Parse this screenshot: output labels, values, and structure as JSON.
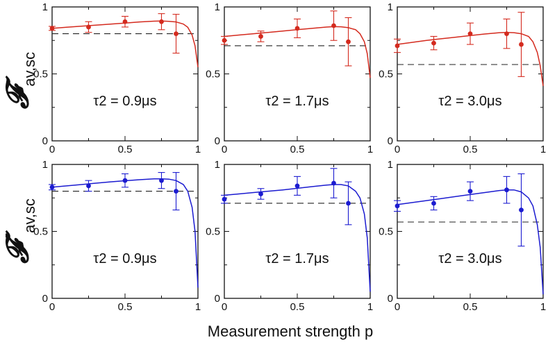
{
  "figure": {
    "xlabel": "Measurement strength p",
    "row_ylabels": [
      {
        "symbol": "𝓕",
        "prime": "",
        "subscript": "av,sc"
      },
      {
        "symbol": "𝓕",
        "prime": "′",
        "subscript": "av,sc"
      }
    ]
  },
  "chart_data": [
    {
      "type": "scatter",
      "row": 0,
      "col": 0,
      "series_color": "#d42a1e",
      "annotation": "τ2 = 0.9μs",
      "xlim": [
        0,
        1
      ],
      "ylim": [
        0,
        1
      ],
      "xticks": [
        "0",
        "0.5",
        "1"
      ],
      "yticks": [
        "0",
        "0.5",
        "1"
      ],
      "points": [
        {
          "x": 0,
          "y": 0.84,
          "err": 0.015
        },
        {
          "x": 0.25,
          "y": 0.85,
          "err": 0.04
        },
        {
          "x": 0.5,
          "y": 0.89,
          "err": 0.04
        },
        {
          "x": 0.75,
          "y": 0.89,
          "err": 0.06
        },
        {
          "x": 0.85,
          "y": 0.8,
          "err": 0.145
        }
      ],
      "fit_curve": {
        "x": [
          0,
          0.1,
          0.2,
          0.3,
          0.4,
          0.5,
          0.6,
          0.7,
          0.75,
          0.8,
          0.85,
          0.9,
          0.93,
          0.96,
          0.98,
          1.0
        ],
        "y": [
          0.84,
          0.848,
          0.856,
          0.864,
          0.872,
          0.88,
          0.888,
          0.894,
          0.895,
          0.893,
          0.888,
          0.872,
          0.848,
          0.79,
          0.71,
          0.55
        ]
      },
      "classical_bound": 0.8
    },
    {
      "type": "scatter",
      "row": 0,
      "col": 1,
      "series_color": "#d42a1e",
      "annotation": "τ2 = 1.7μs",
      "xlim": [
        0,
        1
      ],
      "ylim": [
        0,
        1
      ],
      "xticks": [
        "0",
        "0.5",
        "1"
      ],
      "yticks": [
        "0",
        "0.5",
        "1"
      ],
      "points": [
        {
          "x": 0,
          "y": 0.75,
          "err": 0.03
        },
        {
          "x": 0.25,
          "y": 0.78,
          "err": 0.04
        },
        {
          "x": 0.5,
          "y": 0.84,
          "err": 0.07
        },
        {
          "x": 0.75,
          "y": 0.86,
          "err": 0.11
        },
        {
          "x": 0.85,
          "y": 0.74,
          "err": 0.18
        }
      ],
      "fit_curve": {
        "x": [
          0,
          0.1,
          0.2,
          0.3,
          0.4,
          0.5,
          0.6,
          0.7,
          0.75,
          0.8,
          0.85,
          0.9,
          0.93,
          0.96,
          0.98,
          1.0
        ],
        "y": [
          0.78,
          0.79,
          0.8,
          0.81,
          0.82,
          0.83,
          0.84,
          0.85,
          0.853,
          0.852,
          0.845,
          0.83,
          0.8,
          0.74,
          0.65,
          0.47
        ]
      },
      "classical_bound": 0.71
    },
    {
      "type": "scatter",
      "row": 0,
      "col": 2,
      "series_color": "#d42a1e",
      "annotation": "τ2 = 3.0μs",
      "xlim": [
        0,
        1
      ],
      "ylim": [
        0,
        1
      ],
      "xticks": [
        "0",
        "0.5",
        "1"
      ],
      "yticks": [
        "0",
        "0.5",
        "1"
      ],
      "points": [
        {
          "x": 0,
          "y": 0.71,
          "err": 0.05
        },
        {
          "x": 0.25,
          "y": 0.73,
          "err": 0.05
        },
        {
          "x": 0.5,
          "y": 0.8,
          "err": 0.08
        },
        {
          "x": 0.75,
          "y": 0.8,
          "err": 0.11
        },
        {
          "x": 0.85,
          "y": 0.72,
          "err": 0.24
        }
      ],
      "fit_curve": {
        "x": [
          0,
          0.1,
          0.2,
          0.3,
          0.4,
          0.5,
          0.6,
          0.7,
          0.75,
          0.8,
          0.85,
          0.9,
          0.93,
          0.96,
          0.98,
          1.0
        ],
        "y": [
          0.72,
          0.735,
          0.75,
          0.762,
          0.774,
          0.786,
          0.798,
          0.808,
          0.81,
          0.808,
          0.8,
          0.78,
          0.74,
          0.66,
          0.56,
          0.41
        ]
      },
      "classical_bound": 0.57
    },
    {
      "type": "scatter",
      "row": 1,
      "col": 0,
      "series_color": "#1b1bd0",
      "annotation": "τ2 = 0.9μs",
      "xlim": [
        0,
        1
      ],
      "ylim": [
        0,
        1
      ],
      "xticks": [
        "0",
        "0.5",
        "1"
      ],
      "yticks": [
        "0",
        "0.5",
        "1"
      ],
      "points": [
        {
          "x": 0,
          "y": 0.83,
          "err": 0.02
        },
        {
          "x": 0.25,
          "y": 0.84,
          "err": 0.04
        },
        {
          "x": 0.5,
          "y": 0.88,
          "err": 0.05
        },
        {
          "x": 0.75,
          "y": 0.88,
          "err": 0.06
        },
        {
          "x": 0.85,
          "y": 0.8,
          "err": 0.14
        }
      ],
      "fit_curve": {
        "x": [
          0,
          0.1,
          0.2,
          0.3,
          0.4,
          0.5,
          0.6,
          0.7,
          0.75,
          0.8,
          0.85,
          0.9,
          0.93,
          0.96,
          0.98,
          1.0
        ],
        "y": [
          0.83,
          0.84,
          0.85,
          0.86,
          0.87,
          0.878,
          0.886,
          0.892,
          0.893,
          0.89,
          0.88,
          0.85,
          0.8,
          0.68,
          0.5,
          0.08
        ]
      },
      "classical_bound": 0.8
    },
    {
      "type": "scatter",
      "row": 1,
      "col": 1,
      "series_color": "#1b1bd0",
      "annotation": "τ2 = 1.7μs",
      "xlim": [
        0,
        1
      ],
      "ylim": [
        0,
        1
      ],
      "xticks": [
        "0",
        "0.5",
        "1"
      ],
      "yticks": [
        "0",
        "0.5",
        "1"
      ],
      "points": [
        {
          "x": 0,
          "y": 0.74,
          "err": 0.03
        },
        {
          "x": 0.25,
          "y": 0.78,
          "err": 0.04
        },
        {
          "x": 0.5,
          "y": 0.84,
          "err": 0.07
        },
        {
          "x": 0.75,
          "y": 0.86,
          "err": 0.11
        },
        {
          "x": 0.85,
          "y": 0.71,
          "err": 0.16
        }
      ],
      "fit_curve": {
        "x": [
          0,
          0.1,
          0.2,
          0.3,
          0.4,
          0.5,
          0.6,
          0.7,
          0.75,
          0.8,
          0.85,
          0.9,
          0.93,
          0.96,
          0.98,
          1.0
        ],
        "y": [
          0.77,
          0.78,
          0.79,
          0.8,
          0.81,
          0.822,
          0.834,
          0.846,
          0.85,
          0.85,
          0.84,
          0.8,
          0.75,
          0.63,
          0.45,
          0.05
        ]
      },
      "classical_bound": 0.71
    },
    {
      "type": "scatter",
      "row": 1,
      "col": 2,
      "series_color": "#1b1bd0",
      "annotation": "τ2 = 3.0μs",
      "xlim": [
        0,
        1
      ],
      "ylim": [
        0,
        1
      ],
      "xticks": [
        "0",
        "0.5",
        "1"
      ],
      "yticks": [
        "0",
        "0.5",
        "1"
      ],
      "points": [
        {
          "x": 0,
          "y": 0.69,
          "err": 0.04
        },
        {
          "x": 0.25,
          "y": 0.71,
          "err": 0.05
        },
        {
          "x": 0.5,
          "y": 0.8,
          "err": 0.07
        },
        {
          "x": 0.75,
          "y": 0.81,
          "err": 0.1
        },
        {
          "x": 0.85,
          "y": 0.66,
          "err": 0.27
        }
      ],
      "fit_curve": {
        "x": [
          0,
          0.1,
          0.2,
          0.3,
          0.4,
          0.5,
          0.6,
          0.7,
          0.75,
          0.8,
          0.85,
          0.9,
          0.93,
          0.96,
          0.98,
          1.0
        ],
        "y": [
          0.7,
          0.715,
          0.73,
          0.745,
          0.76,
          0.775,
          0.79,
          0.805,
          0.81,
          0.81,
          0.795,
          0.75,
          0.69,
          0.55,
          0.38,
          0.03
        ]
      },
      "classical_bound": 0.57
    }
  ]
}
